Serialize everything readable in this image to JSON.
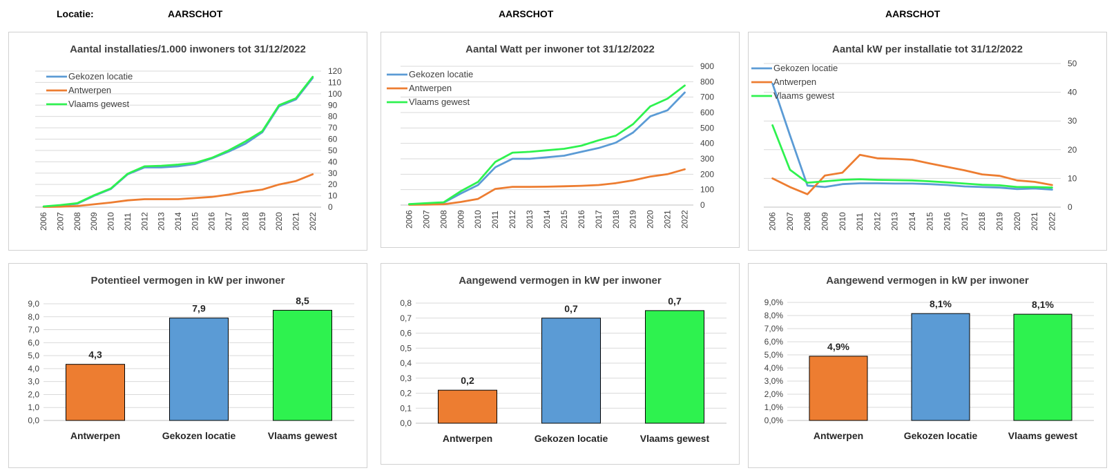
{
  "header": {
    "label": "Locatie:",
    "location_1": "AARSCHOT",
    "location_2": "AARSCHOT",
    "location_3": "AARSCHOT"
  },
  "colors": {
    "gekozen": "#5b9bd5",
    "antwerpen": "#ed7d31",
    "vlaams": "#2ef24f"
  },
  "chart_data": [
    {
      "id": "c1",
      "type": "line",
      "title": "Aantal installaties/1.000  inwoners tot 31/12/2022",
      "x": [
        "2006",
        "2007",
        "2008",
        "2009",
        "2010",
        "2011",
        "2012",
        "2013",
        "2014",
        "2015",
        "2016",
        "2017",
        "2018",
        "2019",
        "2020",
        "2021",
        "2022"
      ],
      "yaxis": "right",
      "ylim": [
        0,
        120
      ],
      "yticks": [
        0,
        10,
        20,
        30,
        40,
        50,
        60,
        70,
        80,
        90,
        100,
        110,
        120
      ],
      "legend": "top-left",
      "series": [
        {
          "name": "Gekozen locatie",
          "color": "#5b9bd5",
          "values": [
            0.5,
            1.5,
            3,
            10,
            16,
            29,
            35,
            35,
            36,
            38,
            43,
            49,
            56,
            66,
            89,
            95,
            114
          ]
        },
        {
          "name": "Antwerpen",
          "color": "#ed7d31",
          "values": [
            0.2,
            0.4,
            1,
            2.5,
            4,
            6,
            7,
            7,
            7,
            8,
            9,
            11,
            13.5,
            15.5,
            20,
            23,
            29
          ]
        },
        {
          "name": "Vlaams gewest",
          "color": "#2ef24f",
          "values": [
            0.6,
            1.8,
            3.5,
            10.5,
            16.5,
            29.5,
            36,
            36.5,
            37.5,
            39,
            43.5,
            50,
            58,
            67,
            90,
            96,
            115
          ]
        }
      ]
    },
    {
      "id": "c2",
      "type": "line",
      "title": "Aantal Watt per inwoner  tot 31/12/2022",
      "x": [
        "2006",
        "2007",
        "2008",
        "2009",
        "2010",
        "2011",
        "2012",
        "2013",
        "2014",
        "2015",
        "2016",
        "2017",
        "2018",
        "2019",
        "2020",
        "2021",
        "2022"
      ],
      "yaxis": "right",
      "ylim": [
        0,
        900
      ],
      "yticks": [
        0,
        100,
        200,
        300,
        400,
        500,
        600,
        700,
        800,
        900
      ],
      "legend": "top-left",
      "series": [
        {
          "name": "Gekozen locatie",
          "color": "#5b9bd5",
          "values": [
            5,
            10,
            15,
            75,
            130,
            245,
            300,
            300,
            310,
            320,
            345,
            370,
            405,
            470,
            575,
            615,
            730
          ]
        },
        {
          "name": "Antwerpen",
          "color": "#ed7d31",
          "values": [
            2,
            3,
            5,
            20,
            40,
            105,
            118,
            118,
            119,
            122,
            125,
            130,
            142,
            160,
            185,
            200,
            232
          ]
        },
        {
          "name": "Vlaams gewest",
          "color": "#2ef24f",
          "values": [
            6,
            12,
            18,
            90,
            150,
            280,
            340,
            345,
            355,
            365,
            385,
            420,
            450,
            525,
            640,
            690,
            775
          ]
        }
      ]
    },
    {
      "id": "c3",
      "type": "line",
      "title": "Aantal kW per installatie  tot 31/12/2022",
      "x": [
        "2006",
        "2007",
        "2008",
        "2009",
        "2010",
        "2011",
        "2012",
        "2013",
        "2014",
        "2015",
        "2016",
        "2017",
        "2018",
        "2019",
        "2020",
        "2021",
        "2022"
      ],
      "yaxis": "right",
      "ylim": [
        0,
        50
      ],
      "yticks": [
        0,
        10,
        20,
        30,
        40,
        50
      ],
      "legend": "top-left",
      "series": [
        {
          "name": "Gekozen locatie",
          "color": "#5b9bd5",
          "values": [
            43,
            25,
            7.5,
            7,
            8,
            8.3,
            8.3,
            8.2,
            8.2,
            8,
            7.7,
            7.2,
            7,
            6.8,
            6.3,
            6.5,
            6.1
          ]
        },
        {
          "name": "Antwerpen",
          "color": "#ed7d31",
          "values": [
            10,
            7,
            4.5,
            11,
            12,
            18.2,
            17,
            16.8,
            16.5,
            15.2,
            14,
            12.8,
            11.4,
            10.9,
            9.3,
            8.8,
            7.7
          ]
        },
        {
          "name": "Vlaams gewest",
          "color": "#2ef24f",
          "values": [
            28.5,
            13,
            8.5,
            9,
            9.5,
            9.7,
            9.5,
            9.4,
            9.3,
            9,
            8.6,
            8.2,
            7.8,
            7.6,
            7,
            7,
            6.8
          ]
        }
      ]
    },
    {
      "id": "c4",
      "type": "bar",
      "title": "Potentieel vermogen in kW per inwoner",
      "categories": [
        "Antwerpen",
        "Gekozen locatie",
        "Vlaams gewest"
      ],
      "values": [
        4.33,
        7.9,
        8.5
      ],
      "data_labels": [
        "4,3",
        "7,9",
        "8,5"
      ],
      "bar_colors": [
        "#ed7d31",
        "#5b9bd5",
        "#2ef24f"
      ],
      "ylim": [
        0,
        9
      ],
      "yticks": [
        "0,0",
        "1,0",
        "2,0",
        "3,0",
        "4,0",
        "5,0",
        "6,0",
        "7,0",
        "8,0",
        "9,0"
      ]
    },
    {
      "id": "c5",
      "type": "bar",
      "title": "Aangewend vermogen in kW per inwoner",
      "categories": [
        "Antwerpen",
        "Gekozen locatie",
        "Vlaams gewest"
      ],
      "values": [
        0.22,
        0.7,
        0.75
      ],
      "data_labels": [
        "0,2",
        "0,7",
        "0,7"
      ],
      "bar_colors": [
        "#ed7d31",
        "#5b9bd5",
        "#2ef24f"
      ],
      "ylim": [
        0,
        0.8
      ],
      "yticks": [
        "0,0",
        "0,1",
        "0,2",
        "0,3",
        "0,4",
        "0,5",
        "0,6",
        "0,7",
        "0,8"
      ]
    },
    {
      "id": "c6",
      "type": "bar",
      "title": "Aangewend vermogen in kW per inwoner",
      "categories": [
        "Antwerpen",
        "Gekozen locatie",
        "Vlaams gewest"
      ],
      "values": [
        4.9,
        8.15,
        8.1
      ],
      "data_labels": [
        "4,9%",
        "8,1%",
        "8,1%"
      ],
      "bar_colors": [
        "#ed7d31",
        "#5b9bd5",
        "#2ef24f"
      ],
      "ylim": [
        0,
        9
      ],
      "yticks": [
        "0,0%",
        "1,0%",
        "2,0%",
        "3,0%",
        "4,0%",
        "5,0%",
        "6,0%",
        "7,0%",
        "8,0%",
        "9,0%"
      ]
    }
  ]
}
